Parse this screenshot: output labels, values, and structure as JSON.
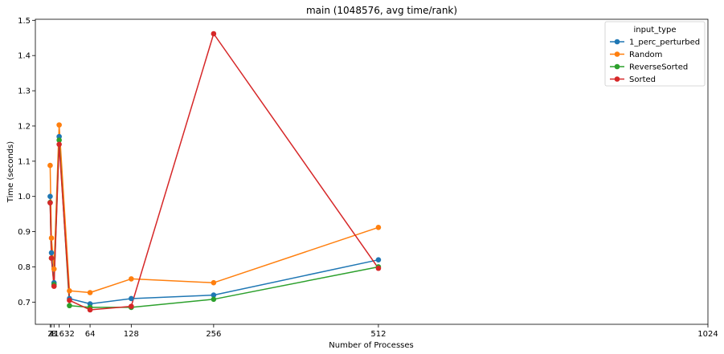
{
  "chart_data": {
    "type": "line",
    "title": "main (1048576, avg time/rank)",
    "xlabel": "Number of Processes",
    "ylabel": "Time (seconds)",
    "xlim": [
      -21,
      1024
    ],
    "ylim": [
      0.637,
      1.503
    ],
    "x_ticks": [
      2,
      4,
      8,
      16,
      32,
      64,
      128,
      256,
      512,
      1024
    ],
    "y_ticks": [
      0.7,
      0.8,
      0.9,
      1.0,
      1.1,
      1.2,
      1.3,
      1.4,
      1.5
    ],
    "y_tick_labels": [
      "0.7",
      "0.8",
      "0.9",
      "1.0",
      "1.1",
      "1.2",
      "1.3",
      "1.4",
      "1.5"
    ],
    "grid": false,
    "legend": {
      "title": "input_type",
      "position": "top-right"
    },
    "series": [
      {
        "name": "1_perc_perturbed",
        "color": "#1f77b4",
        "points": [
          [
            2,
            1.0
          ],
          [
            4,
            0.84
          ],
          [
            8,
            0.755
          ],
          [
            16,
            1.17
          ],
          [
            32,
            0.71
          ],
          [
            64,
            0.695
          ],
          [
            128,
            0.71
          ],
          [
            256,
            0.72
          ],
          [
            512,
            0.82
          ]
        ]
      },
      {
        "name": "Random",
        "color": "#ff7f0e",
        "points": [
          [
            2,
            1.088
          ],
          [
            4,
            0.882
          ],
          [
            8,
            0.794
          ],
          [
            16,
            1.203
          ],
          [
            32,
            0.732
          ],
          [
            64,
            0.727
          ],
          [
            128,
            0.766
          ],
          [
            256,
            0.755
          ],
          [
            512,
            0.912
          ]
        ]
      },
      {
        "name": "ReverseSorted",
        "color": "#2ca02c",
        "points": [
          [
            2,
            0.983
          ],
          [
            4,
            0.825
          ],
          [
            8,
            0.75
          ],
          [
            16,
            1.16
          ],
          [
            32,
            0.69
          ],
          [
            64,
            0.685
          ],
          [
            128,
            0.685
          ],
          [
            256,
            0.708
          ],
          [
            512,
            0.8
          ]
        ]
      },
      {
        "name": "Sorted",
        "color": "#d62728",
        "points": [
          [
            2,
            0.982
          ],
          [
            4,
            0.825
          ],
          [
            8,
            0.745
          ],
          [
            16,
            1.148
          ],
          [
            32,
            0.705
          ],
          [
            64,
            0.678
          ],
          [
            128,
            0.688
          ],
          [
            256,
            1.462
          ],
          [
            512,
            0.796
          ]
        ]
      }
    ]
  }
}
